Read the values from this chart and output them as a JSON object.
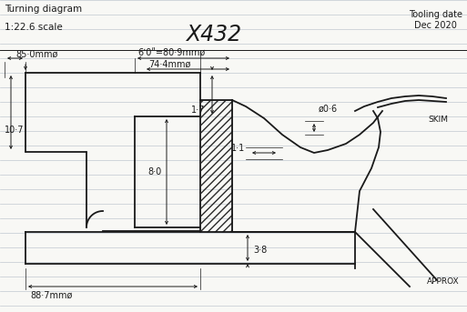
{
  "title": "X432",
  "subtitle_left": "Turning diagram",
  "scale_text": "1:22.6 scale",
  "tooling_text": "Tooling date\nDec 2020",
  "approx_text": "APPROX",
  "skim_text": "SKIM",
  "dim_850": "85·0mmø",
  "dim_60": "6ʼ0ʺ=80·9mmø",
  "dim_744": "74·4mmø",
  "dim_06": "ø0·6",
  "dim_107": "10·7",
  "dim_17": "1·7",
  "dim_80": "8·0",
  "dim_11": "1·1",
  "dim_38": "3·8",
  "dim_887": "88·7mmø",
  "bg_color": "#f8f8f5",
  "line_color": "#1a1a1a",
  "hatch_color": "#2a2a2a",
  "ruled_line_color": "#c0c8d0",
  "fig_width": 5.13,
  "fig_height": 3.43,
  "dpi": 100
}
